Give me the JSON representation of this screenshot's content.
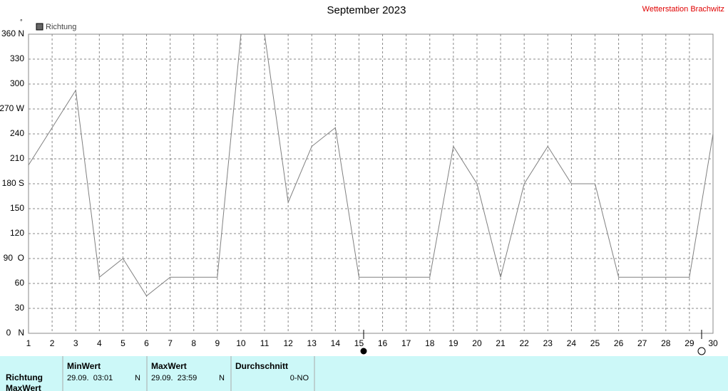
{
  "chart_data": {
    "type": "line",
    "title": "September 2023",
    "station": "Wetterstation Brachwitz",
    "y_unit": "°",
    "x": [
      1,
      2,
      3,
      4,
      5,
      6,
      7,
      8,
      9,
      10,
      11,
      12,
      13,
      14,
      15,
      16,
      17,
      18,
      19,
      20,
      21,
      22,
      23,
      24,
      25,
      26,
      27,
      28,
      29,
      30
    ],
    "series": [
      {
        "name": "Richtung",
        "color": "#808080",
        "values": [
          202.5,
          247.5,
          292.5,
          67.5,
          90,
          45,
          67.5,
          67.5,
          67.5,
          360,
          360,
          157.5,
          225,
          247.5,
          67.5,
          67.5,
          67.5,
          67.5,
          225,
          180,
          67.5,
          180,
          225,
          180,
          180,
          67.5,
          67.5,
          67.5,
          67.5,
          240
        ]
      }
    ],
    "xlim": [
      1,
      30
    ],
    "xticks": [
      1,
      2,
      3,
      4,
      5,
      6,
      7,
      8,
      9,
      10,
      11,
      12,
      13,
      14,
      15,
      16,
      17,
      18,
      19,
      20,
      21,
      22,
      23,
      24,
      25,
      26,
      27,
      28,
      29,
      30
    ],
    "ylim": [
      0,
      360
    ],
    "yticks": [
      {
        "value": 0,
        "label": "0   N"
      },
      30,
      60,
      {
        "value": 90,
        "label": "90  O"
      },
      120,
      150,
      {
        "value": 180,
        "label": "180 S"
      },
      210,
      240,
      {
        "value": 270,
        "label": "270 W"
      },
      300,
      330,
      {
        "value": 360,
        "label": "360 N"
      }
    ],
    "grid": true,
    "legend": "top-left"
  },
  "table": {
    "headers": [
      "MinWert",
      "MaxWert",
      "Durchschnitt"
    ],
    "rows": [
      [
        "Richtung",
        "29.09.  03:01",
        "N",
        "29.09.  23:59",
        "N",
        "0-NO"
      ],
      [
        "MaxWert"
      ]
    ]
  }
}
